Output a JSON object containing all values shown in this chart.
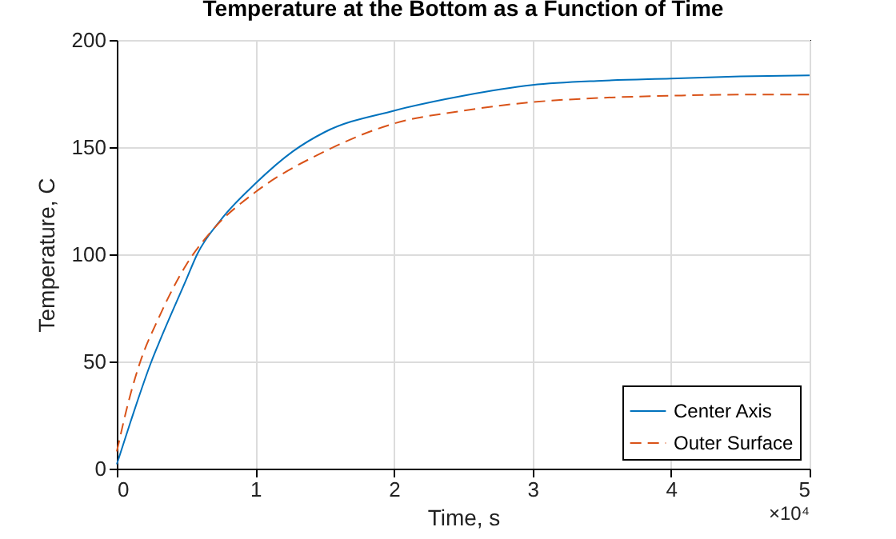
{
  "chart_data": {
    "type": "line",
    "title": "Temperature at the Bottom as a Function of Time",
    "xlabel": "Time, s",
    "ylabel": "Temperature, C",
    "annotations": [
      "×10⁴"
    ],
    "x": [
      0,
      0.1,
      0.25,
      0.3,
      0.5,
      0.58,
      0.75,
      1,
      1.27,
      1.5,
      2,
      2.5,
      3,
      3.5,
      4,
      4.5,
      5
    ],
    "series": [
      {
        "name": "Center Axis",
        "color": "#0072bd",
        "line_style": "solid",
        "values": [
          2,
          22,
          50,
          58,
          88,
          100,
          116,
          133,
          148,
          157,
          167,
          174,
          179,
          181,
          182,
          183,
          183.5
        ]
      },
      {
        "name": "Outer Surface",
        "color": "#d95319",
        "line_style": "dashed",
        "x": [
          0,
          0.1,
          0.17,
          0.3,
          0.5,
          0.7,
          1,
          1.5,
          2,
          2.5,
          3,
          3.5,
          4,
          4.5,
          5
        ],
        "values": [
          8,
          35,
          50,
          70,
          95,
          112,
          129,
          148,
          161,
          167,
          171,
          173,
          174,
          174.5,
          174.5
        ]
      }
    ],
    "xlim": [
      0,
      5
    ],
    "xticks": [
      0,
      1,
      2,
      3,
      4,
      5
    ],
    "ylim": [
      0,
      200
    ],
    "yticks": [
      0,
      50,
      100,
      150,
      200
    ],
    "grid": true,
    "legend": "bottom right",
    "marker": "none"
  }
}
